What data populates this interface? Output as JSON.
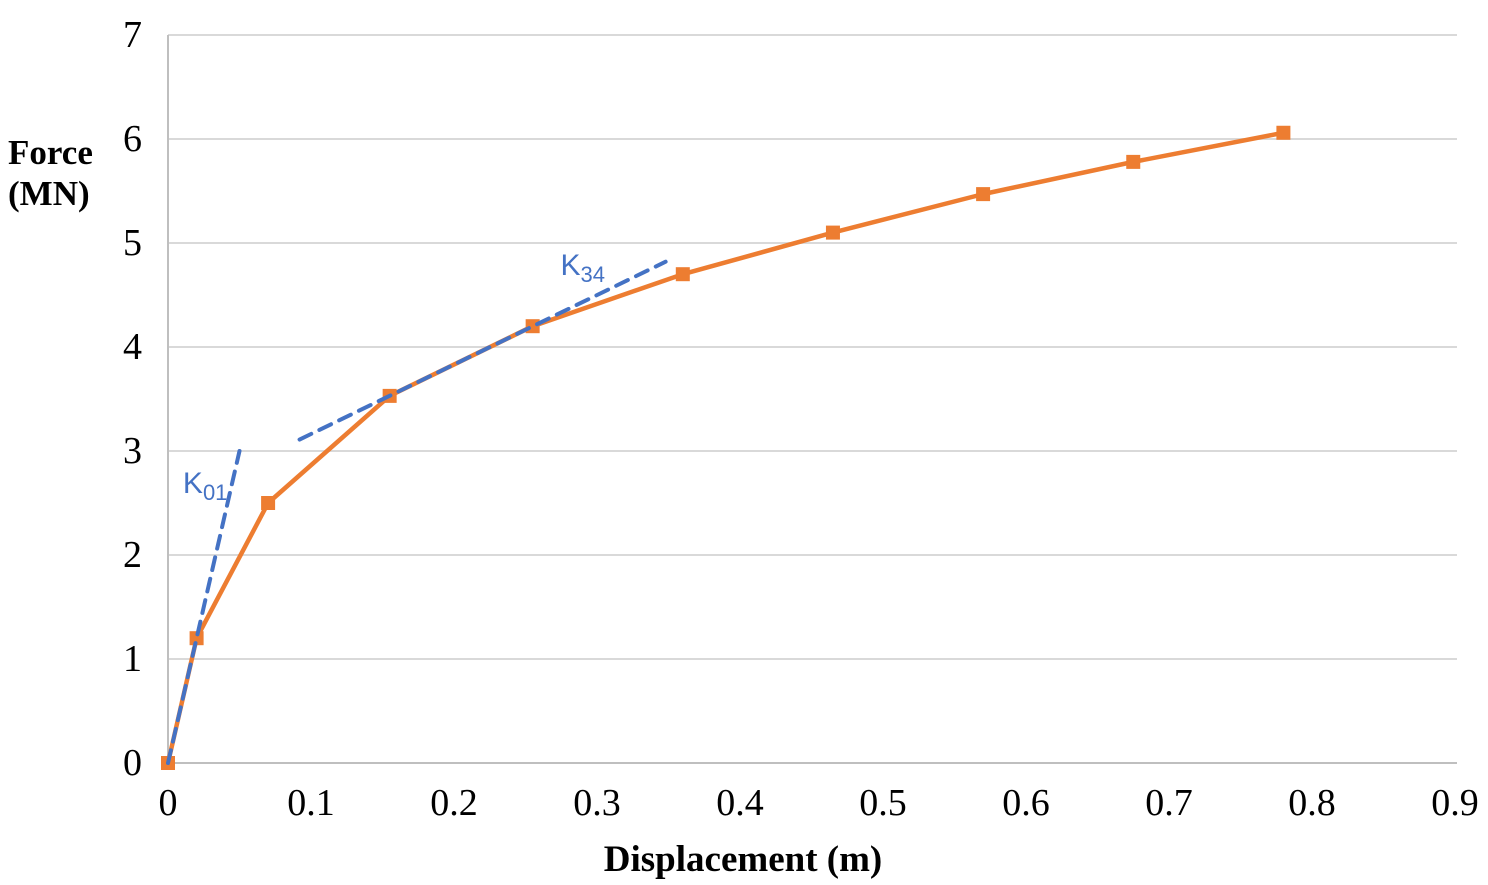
{
  "chart_data": {
    "type": "line",
    "title": "",
    "xlabel": "Displacement (m)",
    "ylabel_lines": [
      "Force",
      "(MN)"
    ],
    "xlim": [
      0,
      0.9
    ],
    "ylim": [
      0,
      7
    ],
    "grid": "horizontal-only",
    "legend_position": "none",
    "x_ticks": [
      {
        "value": 0,
        "label": "0"
      },
      {
        "value": 0.1,
        "label": "0.1"
      },
      {
        "value": 0.2,
        "label": "0.2"
      },
      {
        "value": 0.3,
        "label": "0.3"
      },
      {
        "value": 0.4,
        "label": "0.4"
      },
      {
        "value": 0.5,
        "label": "0.5"
      },
      {
        "value": 0.6,
        "label": "0.6"
      },
      {
        "value": 0.7,
        "label": "0.7"
      },
      {
        "value": 0.8,
        "label": "0.8"
      },
      {
        "value": 0.9,
        "label": "0.9"
      }
    ],
    "y_ticks": [
      {
        "value": 0,
        "label": "0"
      },
      {
        "value": 1,
        "label": "1"
      },
      {
        "value": 2,
        "label": "2"
      },
      {
        "value": 3,
        "label": "3"
      },
      {
        "value": 4,
        "label": "4"
      },
      {
        "value": 5,
        "label": "5"
      },
      {
        "value": 6,
        "label": "6"
      },
      {
        "value": 7,
        "label": "7"
      }
    ],
    "series": [
      {
        "name": "force_displacement_curve",
        "color": "#ED7D31",
        "line_style": "solid",
        "marker": "square",
        "points": [
          {
            "x": 0,
            "y": 0
          },
          {
            "x": 0.02,
            "y": 1.2
          },
          {
            "x": 0.07,
            "y": 2.5
          },
          {
            "x": 0.155,
            "y": 3.53
          },
          {
            "x": 0.255,
            "y": 4.2
          },
          {
            "x": 0.36,
            "y": 4.7
          },
          {
            "x": 0.465,
            "y": 5.1
          },
          {
            "x": 0.57,
            "y": 5.47
          },
          {
            "x": 0.675,
            "y": 5.78
          },
          {
            "x": 0.78,
            "y": 6.06
          }
        ]
      }
    ],
    "annotations": [
      {
        "name": "K01_stiffness_line",
        "label_main": "K",
        "label_sub": "01",
        "color": "#4472C4",
        "style": "dashed",
        "line": {
          "x1": 0,
          "y1": 0,
          "x2": 0.05,
          "y2": 3.0
        },
        "label_pos": {
          "x": 0.026,
          "y": 2.68
        }
      },
      {
        "name": "K34_stiffness_line",
        "label_main": "K",
        "label_sub": "34",
        "color": "#4472C4",
        "style": "dashed",
        "line": {
          "x1": 0.092,
          "y1": 3.11,
          "x2": 0.348,
          "y2": 4.82
        },
        "label_pos": {
          "x": 0.29,
          "y": 4.78
        }
      }
    ]
  },
  "colors": {
    "series_orange": "#ED7D31",
    "annotation_blue": "#4472C4",
    "gridline": "#D9D9D9",
    "axis_line": "#BFBFBF",
    "text": "#000000",
    "background": "#FFFFFF"
  }
}
